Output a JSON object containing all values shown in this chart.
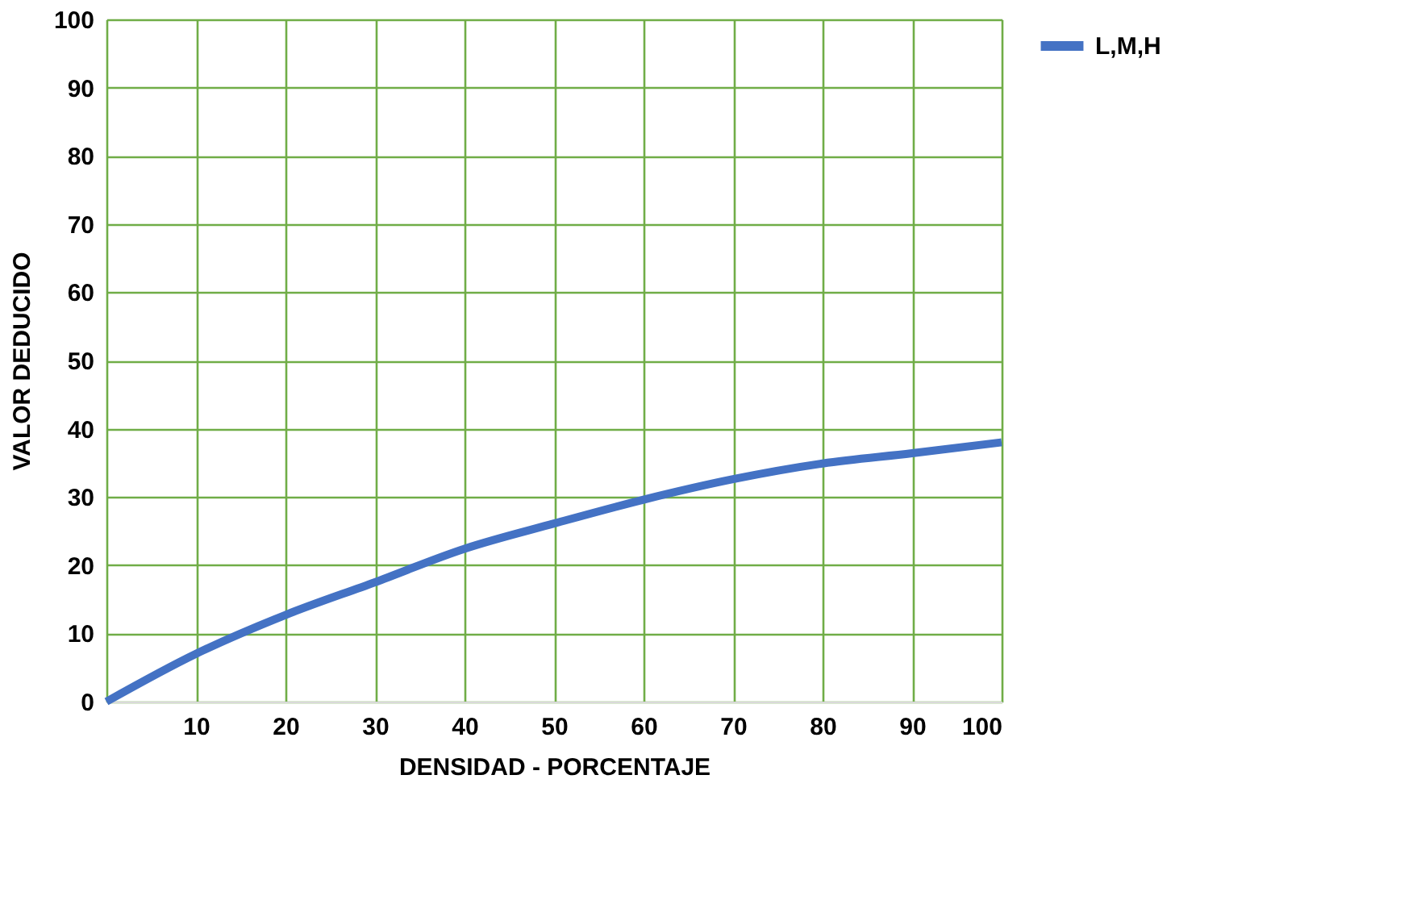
{
  "chart_data": {
    "type": "line",
    "xlabel": "DENSIDAD - PORCENTAJE",
    "ylabel": "VALOR DEDUCIDO",
    "x": [
      0,
      10,
      20,
      30,
      40,
      50,
      60,
      70,
      80,
      90,
      100
    ],
    "series": [
      {
        "name": "L,M,H",
        "color": "#4472c4",
        "values": [
          0,
          7,
          12.7,
          17.5,
          22.4,
          26.1,
          29.6,
          32.6,
          34.9,
          36.4,
          38
        ]
      }
    ],
    "xlim": [
      0,
      100
    ],
    "xticks": [
      {
        "value": 0,
        "label": null
      },
      10,
      20,
      30,
      40,
      50,
      60,
      70,
      80,
      90,
      100
    ],
    "ylim": [
      0,
      100
    ],
    "yticks": [
      0,
      10,
      20,
      30,
      40,
      50,
      60,
      70,
      80,
      90,
      100
    ],
    "grid": true,
    "legend": "right",
    "marker": "none",
    "line_style": "solid"
  }
}
